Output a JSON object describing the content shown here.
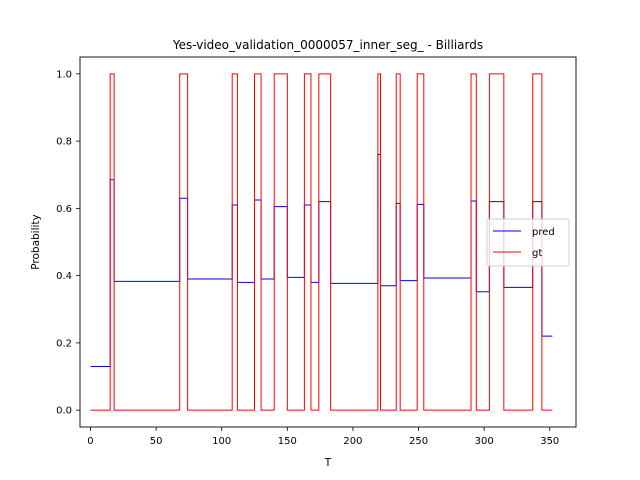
{
  "chart_data": {
    "type": "line",
    "title": "Yes-video_validation_0000057_inner_seg_ - Billiards",
    "xlabel": "T",
    "ylabel": "Probability",
    "xlim": [
      -8,
      370
    ],
    "ylim": [
      -0.05,
      1.05
    ],
    "xticks": [
      0,
      50,
      100,
      150,
      200,
      250,
      300,
      350
    ],
    "yticks": [
      0.0,
      0.2,
      0.4,
      0.6,
      0.8,
      1.0
    ],
    "xtick_labels": [
      "0",
      "50",
      "100",
      "150",
      "200",
      "250",
      "300",
      "350"
    ],
    "ytick_labels": [
      "0.0",
      "0.2",
      "0.4",
      "0.6",
      "0.8",
      "1.0"
    ],
    "legend_position": "center-right",
    "grid": false,
    "series": [
      {
        "name": "pred",
        "color": "#0000ff",
        "step": true,
        "x": [
          0,
          15,
          18,
          68,
          74,
          108,
          112,
          125,
          130,
          140,
          150,
          163,
          168,
          174,
          183,
          219,
          221,
          233,
          236,
          249,
          254,
          290,
          294,
          304,
          307,
          315,
          337,
          344,
          352
        ],
        "y": [
          0.13,
          0.685,
          0.383,
          0.63,
          0.39,
          0.61,
          0.38,
          0.625,
          0.39,
          0.605,
          0.395,
          0.61,
          0.38,
          0.62,
          0.377,
          0.76,
          0.37,
          0.615,
          0.385,
          0.612,
          0.393,
          0.622,
          0.352,
          0.62,
          0.62,
          0.365,
          0.62,
          0.22,
          0.22
        ]
      },
      {
        "name": "gt",
        "color": "#ff0000",
        "step": true,
        "x": [
          0,
          15,
          18,
          68,
          74,
          108,
          112,
          125,
          130,
          140,
          150,
          163,
          168,
          174,
          183,
          219,
          221,
          233,
          236,
          249,
          254,
          290,
          294,
          304,
          315,
          337,
          344,
          352
        ],
        "y": [
          0,
          1,
          0,
          1,
          0,
          1,
          0,
          1,
          0,
          1,
          0,
          1,
          0,
          1,
          0,
          1,
          0,
          1,
          0,
          1,
          0,
          1,
          0,
          1,
          0,
          1,
          0,
          0
        ]
      }
    ]
  }
}
